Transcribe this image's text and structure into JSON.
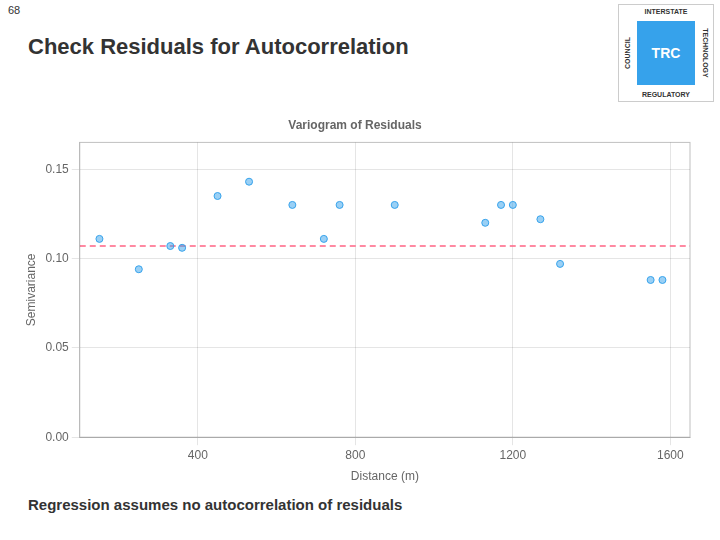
{
  "chart_data": {
    "type": "scatter",
    "title": "Check Residuals for Autocorrelation",
    "plot_title": "Variogram of Residuals",
    "subtitle": "Regression assumes no autocorrelation of residuals",
    "annotations": [
      "68",
      "TRC",
      "INTERSTATE",
      "REGULATORY",
      "COUNCIL",
      "TECHNOLOGY"
    ],
    "x_label": "Distance (m)",
    "y_label": "Semivariance",
    "x": [
      150,
      250,
      330,
      360,
      450,
      530,
      640,
      720,
      760,
      900,
      1130,
      1170,
      1200,
      1270,
      1320,
      1550,
      1580
    ],
    "values": [
      0.111,
      0.094,
      0.107,
      0.106,
      0.135,
      0.143,
      0.13,
      0.111,
      0.13,
      0.13,
      0.12,
      0.13,
      0.13,
      0.122,
      0.097,
      0.088,
      0.088
    ],
    "hline": 0.107,
    "xlim": [
      100,
      1650
    ],
    "ylim": [
      0,
      0.165
    ],
    "xticks": [
      400,
      800,
      1200,
      1600
    ],
    "yticks": [
      {
        "value": 0,
        "label": "0.00"
      },
      0.05,
      {
        "value": 0.1,
        "label": "0.10"
      },
      0.15
    ],
    "grid": true
  }
}
